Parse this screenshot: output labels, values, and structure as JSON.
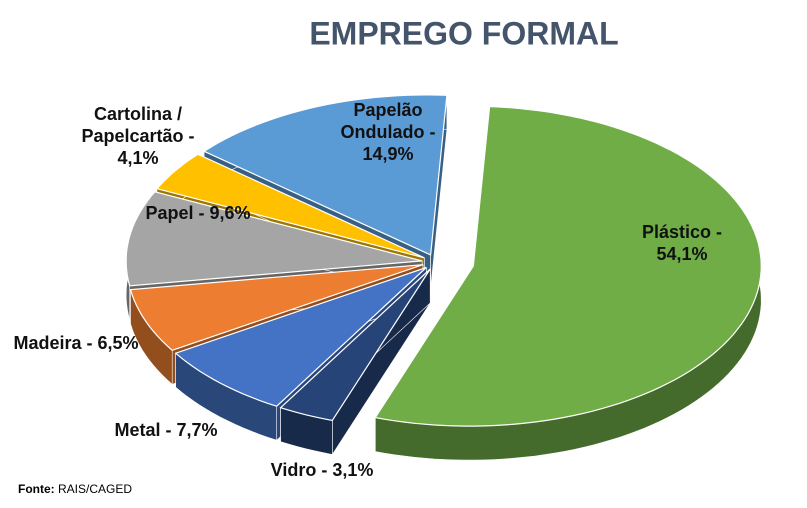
{
  "chart_data": {
    "type": "pie3d",
    "title": "EMPREGO FORMAL",
    "categories": [
      "Plástico - 54,1%",
      "Vidro - 3,1%",
      "Metal - 7,7%",
      "Madeira - 6,5%",
      "Papel - 9,6%",
      "Cartolina /\nPapelcartão -\n4,1%",
      "Papelão\nOndulado -\n14,9%"
    ],
    "values": [
      54.1,
      3.1,
      7.7,
      6.5,
      9.6,
      4.1,
      14.9
    ],
    "colors": [
      "#70ad47",
      "#264478",
      "#4472c4",
      "#ed7d31",
      "#a5a5a5",
      "#ffc000",
      "#5b9bd5"
    ],
    "source": {
      "label": "Fonte:",
      "text": "RAIS/CAGED"
    }
  }
}
